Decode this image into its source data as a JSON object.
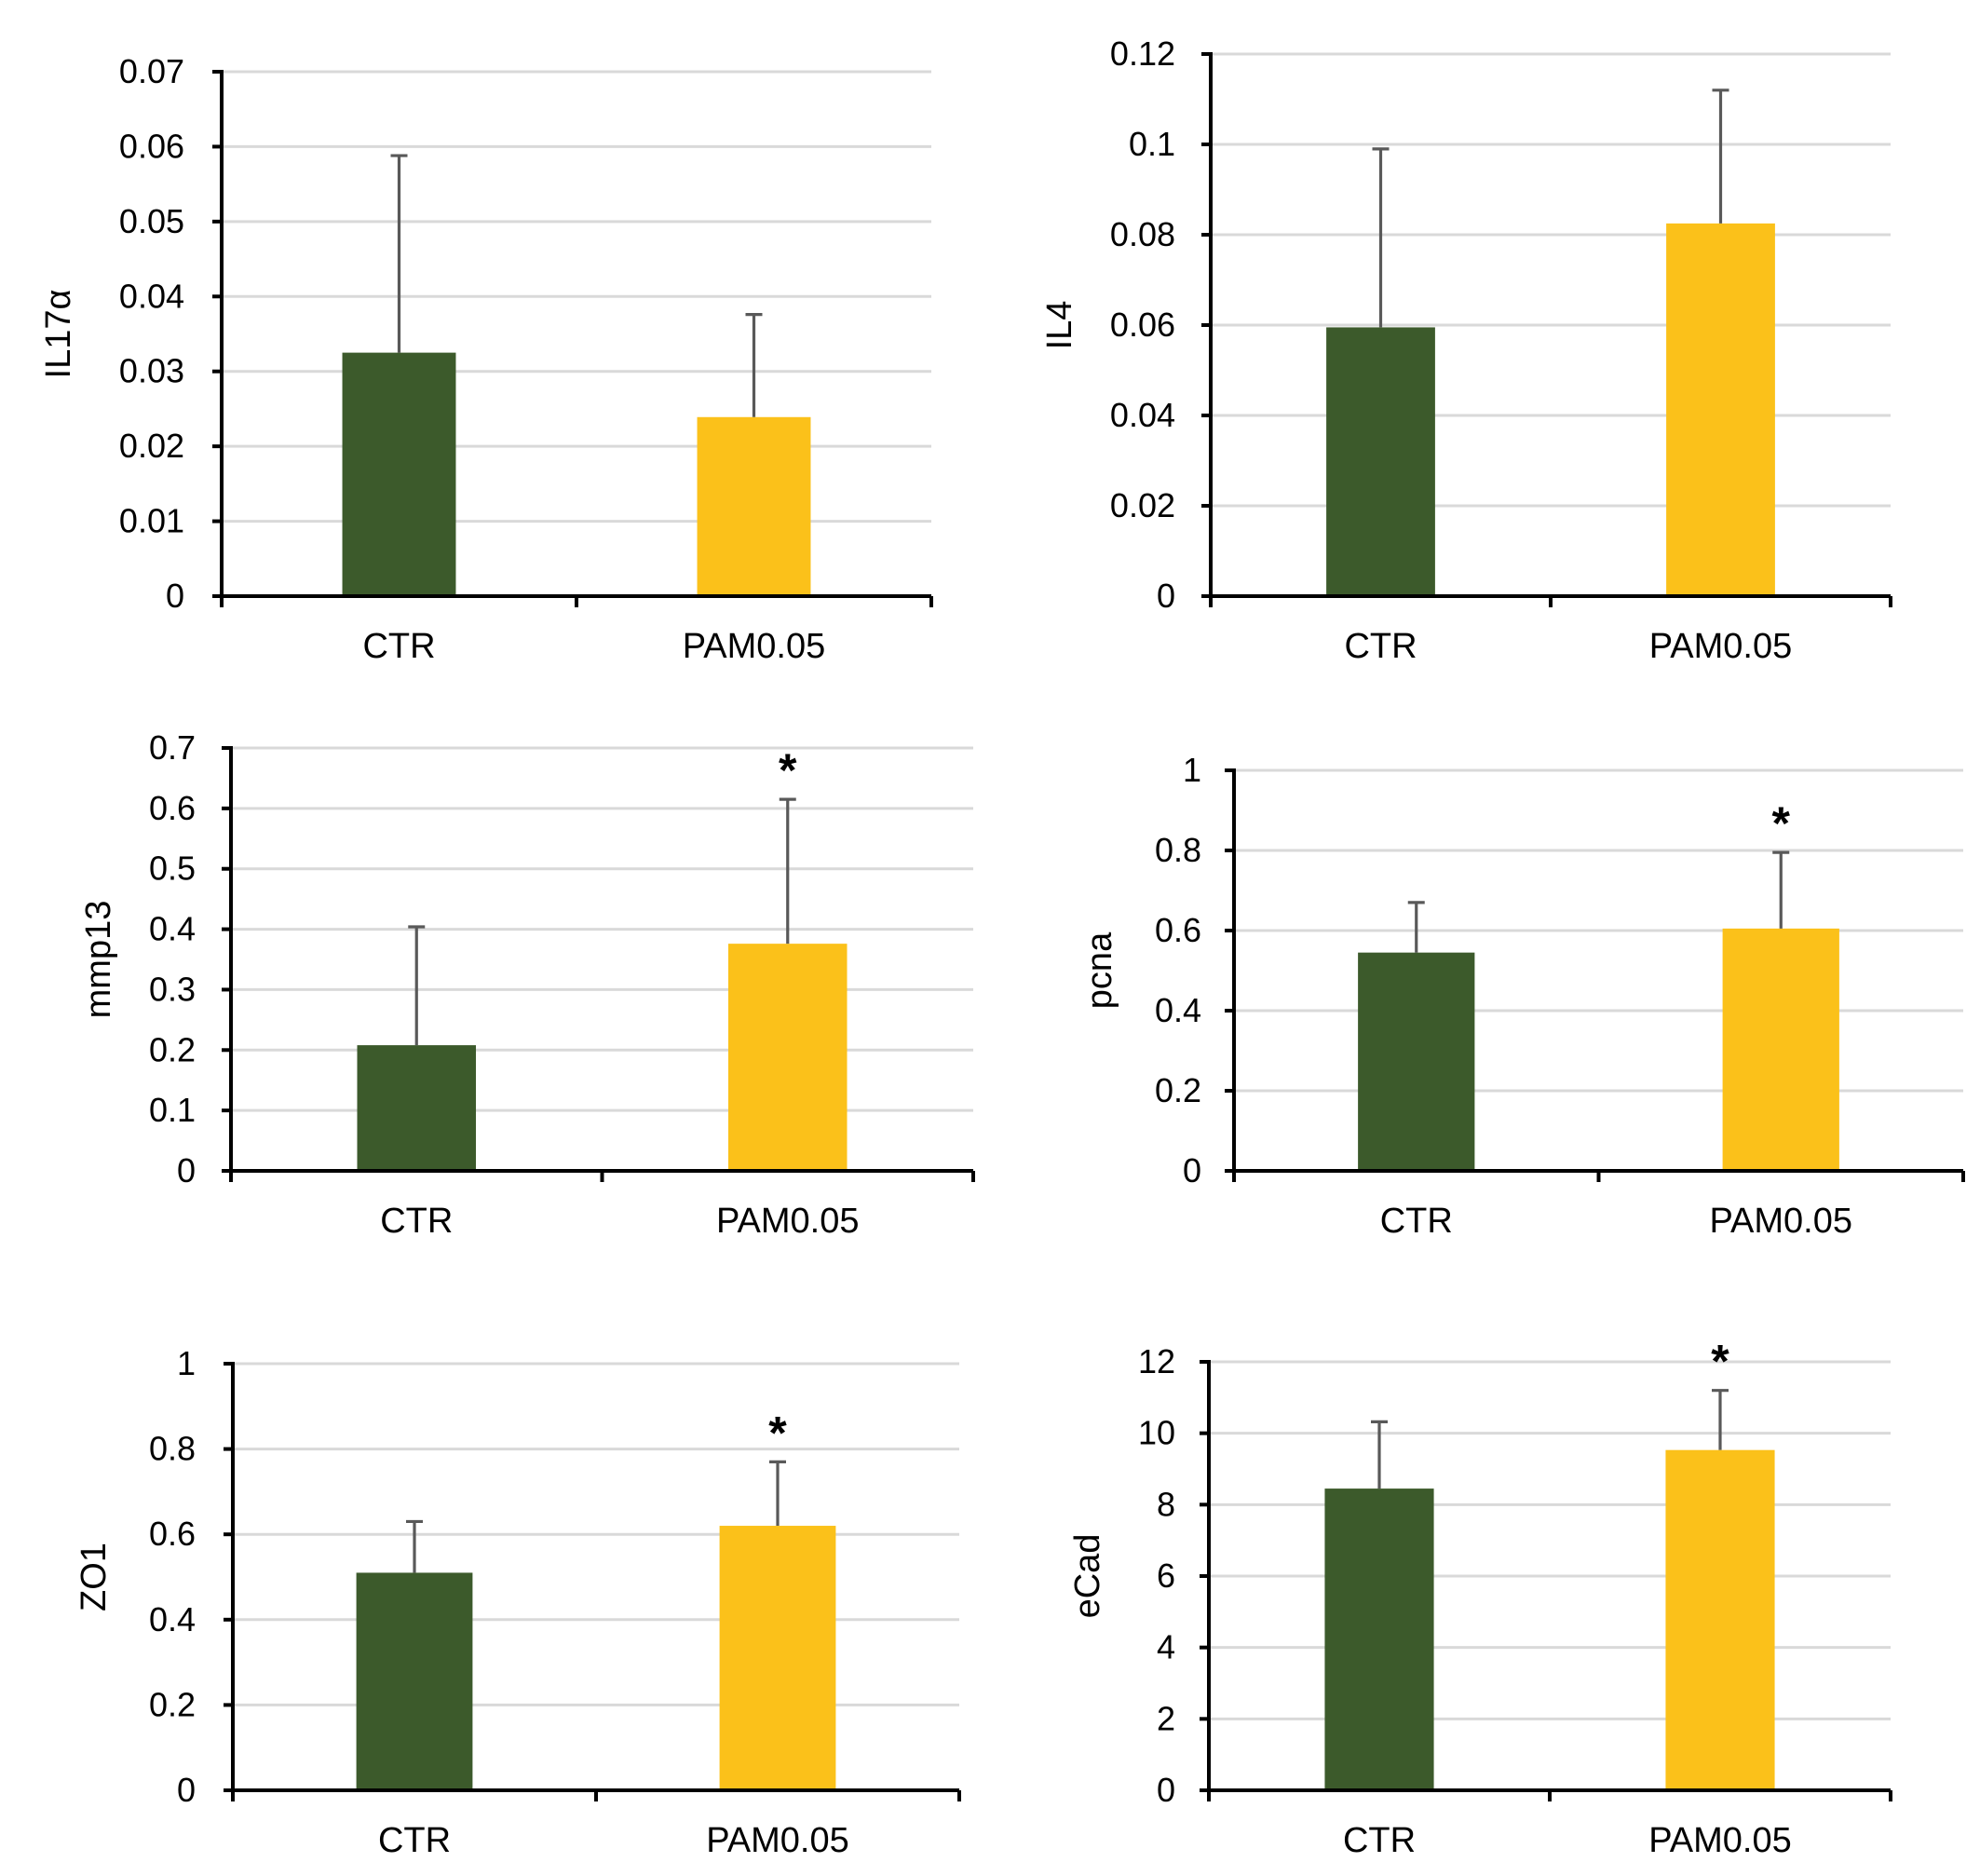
{
  "colors": {
    "CTR": "#3c5a2b",
    "PAM0.05": "#fbc11a",
    "grid": "#d9d9d9",
    "error_bar": "#595959"
  },
  "chart_data": [
    {
      "type": "bar",
      "categories": [
        "CTR",
        "PAM0.05"
      ],
      "ylabel": "IL17α",
      "ylim": [
        0,
        0.07
      ],
      "yticks": [
        0,
        0.01,
        0.02,
        0.03,
        0.04,
        0.05,
        0.06,
        0.07
      ],
      "ytick_labels": [
        "0",
        "0.01",
        "0.02",
        "0.03",
        "0.04",
        "0.05",
        "0.06",
        "0.07"
      ],
      "values": [
        0.0325,
        0.0239
      ],
      "errors": [
        0.0263,
        0.0137
      ],
      "significance": [
        "",
        ""
      ],
      "grid": true
    },
    {
      "type": "bar",
      "categories": [
        "CTR",
        "PAM0.05"
      ],
      "ylabel": "IL4",
      "ylim": [
        0,
        0.12
      ],
      "yticks": [
        0,
        0.02,
        0.04,
        0.06,
        0.08,
        0.1,
        0.12
      ],
      "ytick_labels": [
        "0",
        "0.02",
        "0.04",
        "0.06",
        "0.08",
        "0.1",
        "0.12"
      ],
      "values": [
        0.0595,
        0.0825
      ],
      "errors": [
        0.0395,
        0.0295
      ],
      "significance": [
        "",
        ""
      ],
      "grid": true
    },
    {
      "type": "bar",
      "categories": [
        "CTR",
        "PAM0.05"
      ],
      "ylabel": "mmp13",
      "ylim": [
        0,
        0.7
      ],
      "yticks": [
        0,
        0.1,
        0.2,
        0.3,
        0.4,
        0.5,
        0.6,
        0.7
      ],
      "ytick_labels": [
        "0",
        "0.1",
        "0.2",
        "0.3",
        "0.4",
        "0.5",
        "0.6",
        "0.7"
      ],
      "values": [
        0.208,
        0.376
      ],
      "errors": [
        0.196,
        0.239
      ],
      "significance": [
        "",
        "*"
      ],
      "grid": true
    },
    {
      "type": "bar",
      "categories": [
        "CTR",
        "PAM0.05"
      ],
      "ylabel": "pcna",
      "ylim": [
        0,
        1
      ],
      "yticks": [
        0,
        0.2,
        0.4,
        0.6,
        0.8,
        1
      ],
      "ytick_labels": [
        "0",
        "0.2",
        "0.4",
        "0.6",
        "0.8",
        "1"
      ],
      "values": [
        0.545,
        0.605
      ],
      "errors": [
        0.125,
        0.19
      ],
      "significance": [
        "",
        "*"
      ],
      "grid": true
    },
    {
      "type": "bar",
      "categories": [
        "CTR",
        "PAM0.05"
      ],
      "ylabel": "ZO1",
      "ylim": [
        0,
        1
      ],
      "yticks": [
        0,
        0.2,
        0.4,
        0.6,
        0.8,
        1
      ],
      "ytick_labels": [
        "0",
        "0.2",
        "0.4",
        "0.6",
        "0.8",
        "1"
      ],
      "values": [
        0.51,
        0.62
      ],
      "errors": [
        0.12,
        0.15
      ],
      "significance": [
        "",
        "*"
      ],
      "grid": true
    },
    {
      "type": "bar",
      "categories": [
        "CTR",
        "PAM0.05"
      ],
      "ylabel": "eCad",
      "ylim": [
        0,
        12
      ],
      "yticks": [
        0,
        2,
        4,
        6,
        8,
        10,
        12
      ],
      "ytick_labels": [
        "0",
        "2",
        "4",
        "6",
        "8",
        "10",
        "12"
      ],
      "values": [
        8.45,
        9.53
      ],
      "errors": [
        1.87,
        1.67
      ],
      "significance": [
        "",
        "*"
      ],
      "grid": true
    }
  ]
}
